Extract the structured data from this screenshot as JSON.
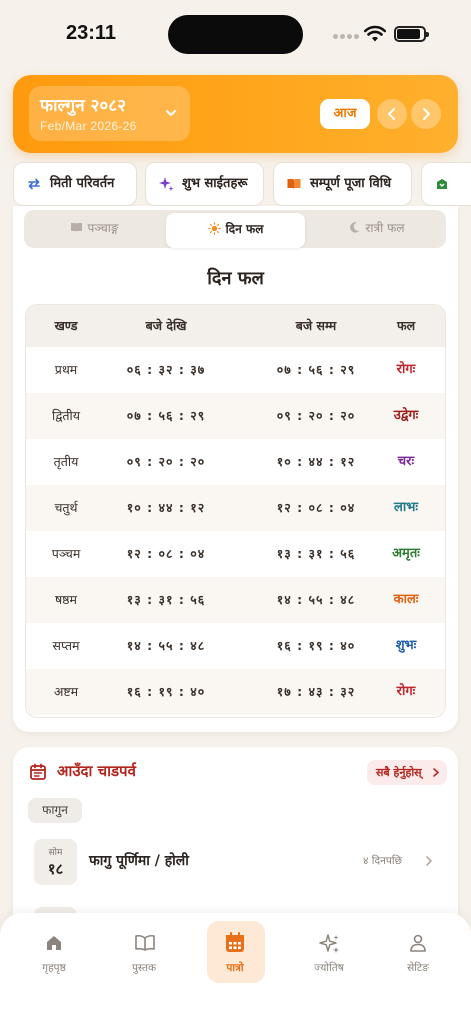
{
  "status": {
    "time": "23:11"
  },
  "header": {
    "month_title": "फाल्गुन २०८२",
    "month_sub": "Feb/Mar 2026-26",
    "today_label": "आज"
  },
  "quick_actions": [
    {
      "label": "मिती परिवर्तन",
      "icon": "swap-arrows-icon"
    },
    {
      "label": "शुभ साईतहरू",
      "icon": "sparkle-icon"
    },
    {
      "label": "सम्पूर्ण पूजा विधि",
      "icon": "book-icon"
    }
  ],
  "segments": [
    {
      "label": "पञ्चाङ्ग",
      "icon": "book-icon"
    },
    {
      "label": "दिन फल",
      "icon": "sun-icon"
    },
    {
      "label": "रात्री फल",
      "icon": "moon-icon"
    }
  ],
  "card_title": "दिन फल",
  "table": {
    "headers": [
      "खण्ड",
      "बजे देखि",
      "बजे सम्म",
      "फल"
    ],
    "rows": [
      {
        "khanda": "प्रथम",
        "from": "०६ : ३२ : ३७",
        "to": "०७ : ५६ : २९",
        "phal": "रोगः",
        "color": "#c0262d"
      },
      {
        "khanda": "द्वितीय",
        "from": "०७ : ५६ : २९",
        "to": "०९ : २० : २०",
        "phal": "उद्वेगः",
        "color": "#9c1c1c"
      },
      {
        "khanda": "तृतीय",
        "from": "०९ : २० : २०",
        "to": "१० : ४४ : १२",
        "phal": "चरः",
        "color": "#7a2a9a"
      },
      {
        "khanda": "चतुर्थ",
        "from": "१० : ४४ : १२",
        "to": "१२ : ०८ : ०४",
        "phal": "लाभः",
        "color": "#1e7a86"
      },
      {
        "khanda": "पञ्चम",
        "from": "१२ : ०८ : ०४",
        "to": "१३ : ३१ : ५६",
        "phal": "अमृतः",
        "color": "#2e7d32"
      },
      {
        "khanda": "षष्ठम",
        "from": "१३ : ३१ : ५६",
        "to": "१४ : ५५ : ४८",
        "phal": "कालः",
        "color": "#e0620e"
      },
      {
        "khanda": "सप्तम",
        "from": "१४ : ५५ : ४८",
        "to": "१६ : १९ : ४०",
        "phal": "शुभः",
        "color": "#1d5fa8"
      },
      {
        "khanda": "अष्टम",
        "from": "१६ : १९ : ४०",
        "to": "१७ : ४३ : ३२",
        "phal": "रोगः",
        "color": "#c0262d"
      }
    ]
  },
  "upcoming": {
    "title": "आउँदा चाडपर्व",
    "see_all": "सबै हेर्नुहोस्",
    "month": "फागुन",
    "events": [
      {
        "weekday": "सोम",
        "day": "१८",
        "name": "फागु पूर्णिमा / होली",
        "days_left": "४ दिनपछि"
      }
    ]
  },
  "bottom_nav": [
    {
      "label": "गृहपृष्ठ",
      "icon": "home-icon"
    },
    {
      "label": "पुस्तक",
      "icon": "book-open-icon"
    },
    {
      "label": "पात्रो",
      "icon": "calendar-icon",
      "active": true
    },
    {
      "label": "ज्योतिष",
      "icon": "sparkle-icon"
    },
    {
      "label": "सेटिङ",
      "icon": "person-icon"
    }
  ],
  "colors": {
    "accent": "#ff9d14",
    "active_tab": "#e8701a",
    "title_red": "#b3261e"
  }
}
